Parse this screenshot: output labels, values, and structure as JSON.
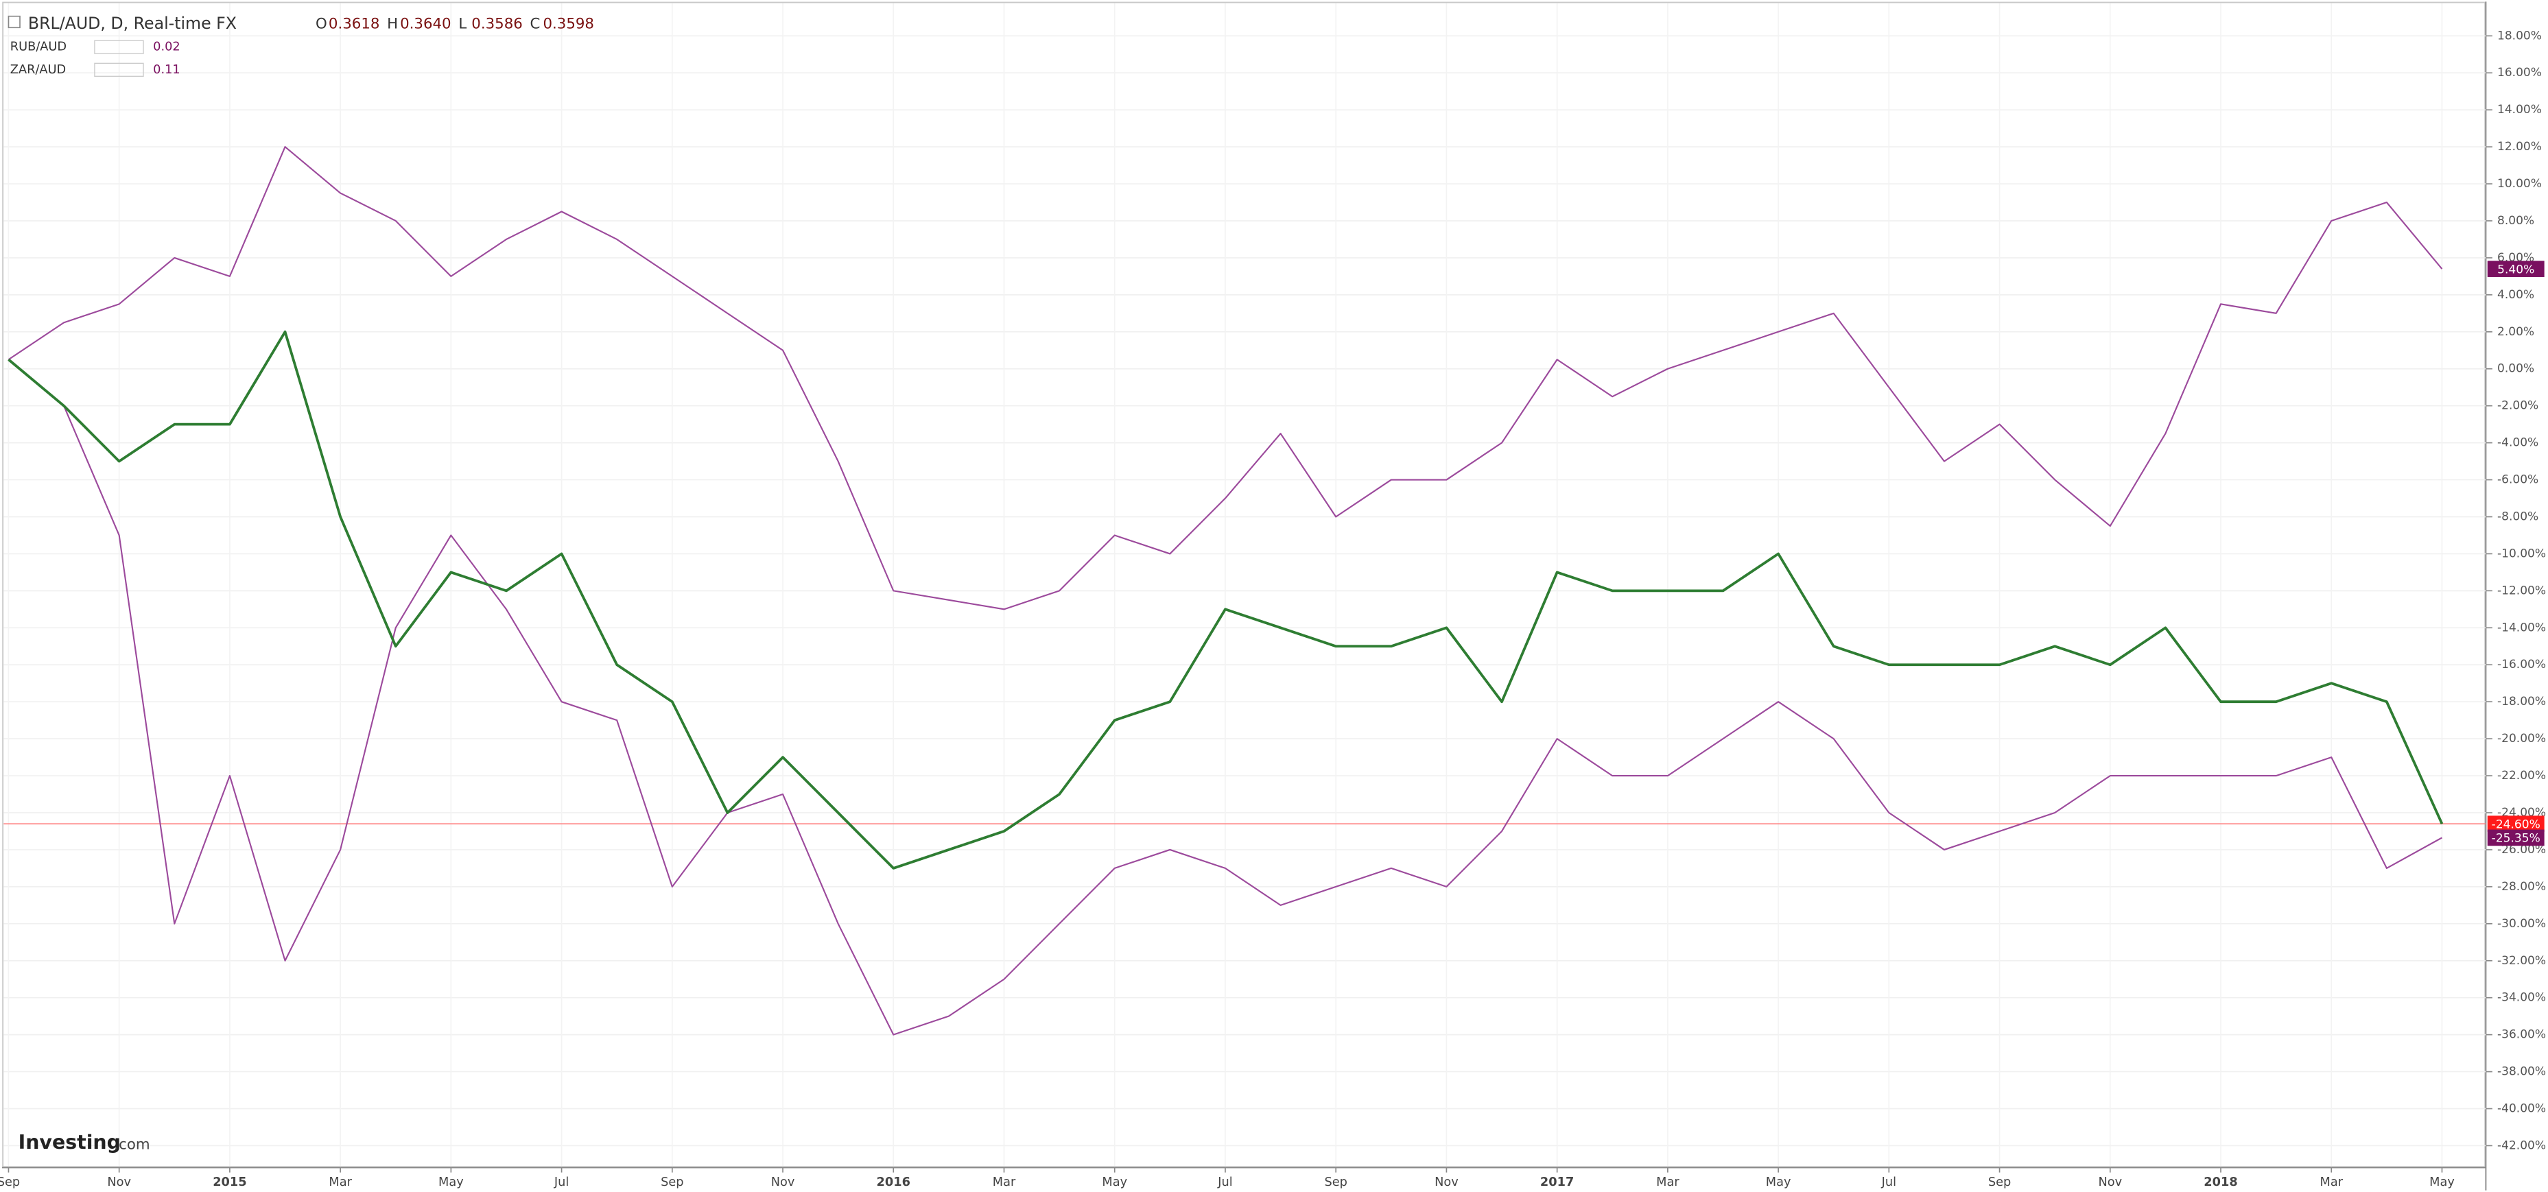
{
  "chart_data": {
    "type": "line",
    "title": "BRL/AUD, D, Real-time FX",
    "ohlc": [
      {
        "label": "O",
        "value": "0.3618"
      },
      {
        "label": "H",
        "value": "0.3640"
      },
      {
        "label": "L",
        "value": "0.3586"
      },
      {
        "label": "C",
        "value": "0.3598"
      }
    ],
    "logo": {
      "name": "Investing",
      "suffix": ".com"
    },
    "categories": [
      "Sep",
      null,
      "Nov",
      null,
      "2015",
      null,
      "Mar",
      null,
      "May",
      null,
      "Jul",
      null,
      "Sep",
      null,
      "Nov",
      null,
      "2016",
      null,
      "Mar",
      null,
      "May",
      null,
      "Jul",
      null,
      "Sep",
      null,
      "Nov",
      null,
      "2017",
      null,
      "Mar",
      null,
      "May",
      null,
      "Jul",
      null,
      "Sep",
      null,
      "Nov",
      null,
      "2018",
      null,
      "Mar",
      null,
      "May"
    ],
    "series": [
      {
        "color": "#2e7d32",
        "label_color": "#ff1a1a",
        "values": [
          0.5,
          -2,
          -5,
          -3,
          -3,
          2,
          -8,
          -15,
          -11,
          -12,
          -10,
          -16,
          -18,
          -24,
          -21,
          -24,
          -27,
          -26,
          -25,
          -23,
          -19,
          -18,
          -13,
          -14,
          -15,
          -15,
          -14,
          -18,
          -11,
          -12,
          -12,
          -12,
          -10,
          -15,
          -16,
          -16,
          -16,
          -15,
          -16,
          -14,
          -18,
          -18,
          -17,
          -18,
          -24.6
        ],
        "value_labels": [
          null,
          null,
          null,
          null,
          null,
          null,
          null,
          null,
          null,
          null,
          null,
          null,
          null,
          null,
          null,
          null,
          null,
          null,
          null,
          null,
          null,
          null,
          null,
          null,
          null,
          null,
          null,
          null,
          null,
          null,
          null,
          null,
          null,
          null,
          null,
          null,
          null,
          null,
          null,
          null,
          null,
          null,
          null,
          null,
          "-24.60%"
        ]
      },
      {
        "name": "RUB/AUD",
        "legend_value": "0.02",
        "color": "#9c4a9c",
        "label_color": "#7a1060",
        "values": [
          0.5,
          -2,
          -9,
          -30,
          -22,
          -32,
          -26,
          -14,
          -9,
          -13,
          -18,
          -19,
          -28,
          -24,
          -23,
          -30,
          -36,
          -35,
          -33,
          -30,
          -27,
          -26,
          -27,
          -29,
          -28,
          -27,
          -28,
          -25,
          -20,
          -22,
          -22,
          -20,
          -18,
          -20,
          -24,
          -26,
          -25,
          -24,
          -22,
          -22,
          -22,
          -22,
          -21,
          -27,
          -25.35
        ],
        "value_labels": [
          null,
          null,
          null,
          null,
          null,
          null,
          null,
          null,
          null,
          null,
          null,
          null,
          null,
          null,
          null,
          null,
          null,
          null,
          null,
          null,
          null,
          null,
          null,
          null,
          null,
          null,
          null,
          null,
          null,
          null,
          null,
          null,
          null,
          null,
          null,
          null,
          null,
          null,
          null,
          null,
          null,
          null,
          null,
          null,
          "-25.35%"
        ]
      },
      {
        "name": "ZAR/AUD",
        "legend_value": "0.11",
        "color": "#9c4a9c",
        "label_color": "#7a1060",
        "values": [
          0.5,
          2.5,
          3.5,
          6,
          5,
          12,
          9.5,
          8,
          5,
          7,
          8.5,
          7,
          5,
          3,
          1,
          -5,
          -12,
          -12.5,
          -13,
          -12,
          -9,
          -10,
          -7,
          -3.5,
          -8,
          -6,
          -6,
          -4,
          0.5,
          -1.5,
          0,
          1,
          2,
          3,
          -1,
          -5,
          -3,
          -6,
          -8.5,
          -3.5,
          3.5,
          3,
          8,
          9,
          5.4
        ],
        "value_labels": [
          null,
          null,
          null,
          null,
          null,
          null,
          null,
          null,
          null,
          null,
          null,
          null,
          null,
          null,
          null,
          null,
          null,
          null,
          null,
          null,
          null,
          null,
          null,
          null,
          null,
          null,
          null,
          null,
          null,
          null,
          null,
          null,
          null,
          null,
          null,
          null,
          null,
          null,
          null,
          null,
          null,
          null,
          null,
          null,
          "5.40%"
        ]
      }
    ],
    "price_line_color": "#ff8080",
    "ylim": [
      -43.1,
      19.5
    ],
    "yticks": [
      {
        "value": -42,
        "label": "-42.00%"
      },
      {
        "value": -40,
        "label": "-40.00%"
      },
      {
        "value": -38,
        "label": "-38.00%"
      },
      {
        "value": -36,
        "label": "-36.00%"
      },
      {
        "value": -34,
        "label": "-34.00%"
      },
      {
        "value": -32,
        "label": "-32.00%"
      },
      {
        "value": -30,
        "label": "-30.00%"
      },
      {
        "value": -28,
        "label": "-28.00%"
      },
      {
        "value": -26,
        "label": "-26.00%"
      },
      {
        "value": -24,
        "label": "-24.00%"
      },
      {
        "value": -22,
        "label": "-22.00%"
      },
      {
        "value": -20,
        "label": "-20.00%"
      },
      {
        "value": -18,
        "label": "-18.00%"
      },
      {
        "value": -16,
        "label": "-16.00%"
      },
      {
        "value": -14,
        "label": "-14.00%"
      },
      {
        "value": -12,
        "label": "-12.00%"
      },
      {
        "value": -10,
        "label": "-10.00%"
      },
      {
        "value": -8,
        "label": "-8.00%"
      },
      {
        "value": -6,
        "label": "-6.00%"
      },
      {
        "value": -4,
        "label": "-4.00%"
      },
      {
        "value": -2,
        "label": "-2.00%"
      },
      {
        "value": 0,
        "label": "0.00%"
      },
      {
        "value": 2,
        "label": "2.00%"
      },
      {
        "value": 4,
        "label": "4.00%"
      },
      {
        "value": 6,
        "label": "6.00%"
      },
      {
        "value": 8,
        "label": "8.00%"
      },
      {
        "value": 10,
        "label": "10.00%"
      },
      {
        "value": 12,
        "label": "12.00%"
      },
      {
        "value": 14,
        "label": "14.00%"
      },
      {
        "value": 16,
        "label": "16.00%"
      },
      {
        "value": 18,
        "label": "18.00%"
      }
    ],
    "grid": true
  }
}
